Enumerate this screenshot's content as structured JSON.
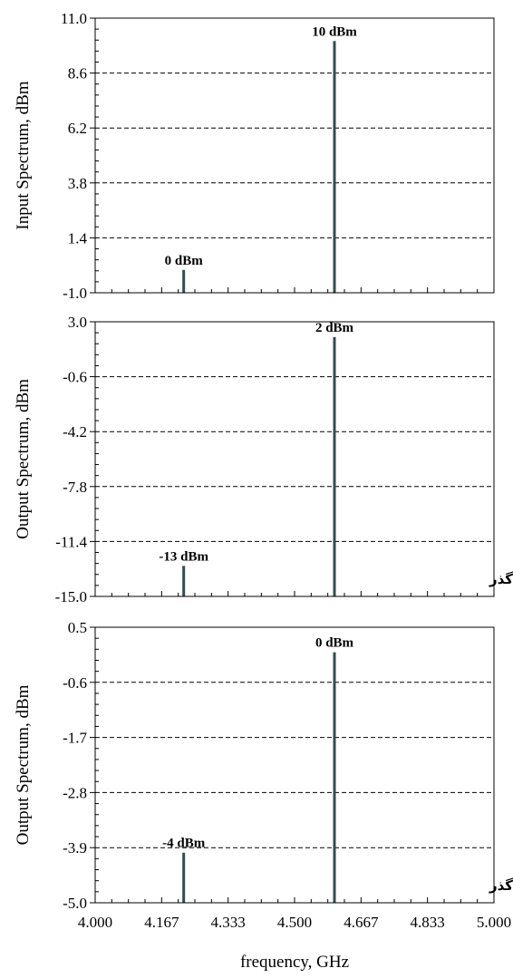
{
  "chart_data": [
    {
      "type": "bar",
      "ylabel": "Input Spectrum, dBm",
      "ylim": [
        -1.0,
        11.0
      ],
      "yticks": [
        "-1.0",
        "1.4",
        "3.8",
        "6.2",
        "8.6",
        "11.0"
      ],
      "x": [
        4.222,
        4.6
      ],
      "values": [
        0,
        10
      ],
      "labels": [
        "0 dBm",
        "10 dBm"
      ],
      "annotation": "",
      "grid": "horizontal dashed"
    },
    {
      "type": "bar",
      "ylabel": "Output Spectrum, dBm",
      "ylim": [
        -15.0,
        3.0
      ],
      "yticks": [
        "-15.0",
        "-11.4",
        "-7.8",
        "-4.2",
        "-0.6",
        "3.0"
      ],
      "x": [
        4.222,
        4.6
      ],
      "values": [
        -13,
        2
      ],
      "labels": [
        "-13 dBm",
        "2 dBm"
      ],
      "annotation": "بدون فیلتر میان گذر",
      "grid": "horizontal dashed"
    },
    {
      "type": "bar",
      "ylabel": "Output Spectrum, dBm",
      "ylim": [
        -5.0,
        0.5
      ],
      "yticks": [
        "-5.0",
        "-3.9",
        "-2.8",
        "-1.7",
        "-0.6",
        "0.5"
      ],
      "x": [
        4.222,
        4.6
      ],
      "values": [
        -4,
        0
      ],
      "labels": [
        "-4 dBm",
        "0 dBm"
      ],
      "annotation": "با فیلتر میان گذر",
      "grid": "horizontal dashed"
    }
  ],
  "x_axis": {
    "xlabel": "frequency, GHz",
    "xlim": [
      4.0,
      5.0
    ],
    "xticks": [
      "4.000",
      "4.167",
      "4.333",
      "4.500",
      "4.667",
      "4.833",
      "5.000"
    ]
  },
  "colors": {
    "bar": "#2f4f4f",
    "grid": "#000000"
  }
}
